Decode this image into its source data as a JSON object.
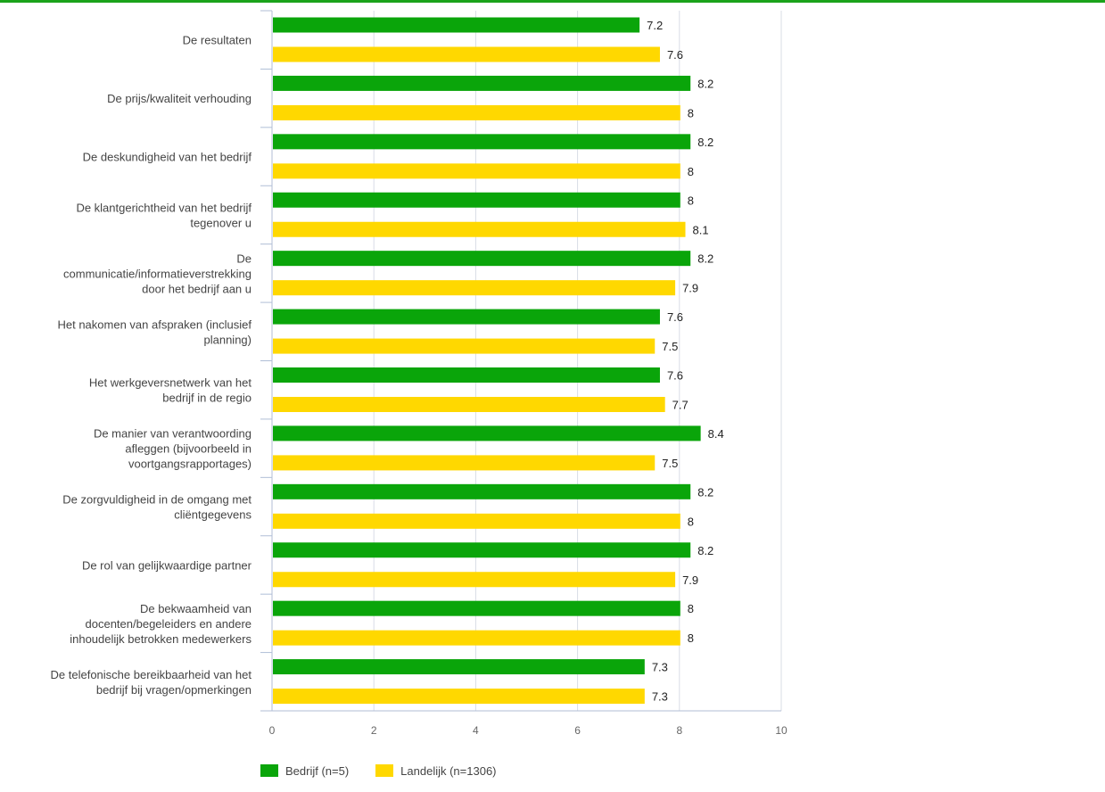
{
  "colors": {
    "top_rule": "#1aa31a",
    "grid": "#d9dde6",
    "axis": "#b0bed6"
  },
  "chart_data": {
    "type": "bar",
    "orientation": "horizontal",
    "categories": [
      [
        "De resultaten"
      ],
      [
        "De prijs/kwaliteit verhouding"
      ],
      [
        "De deskundigheid van het bedrijf"
      ],
      [
        "De klantgerichtheid van het bedrijf",
        "tegenover u"
      ],
      [
        "De",
        "communicatie/informatieverstrekking",
        "door het bedrijf aan u"
      ],
      [
        "Het nakomen van afspraken (inclusief",
        "planning)"
      ],
      [
        "Het werkgeversnetwerk van het",
        "bedrijf in de regio"
      ],
      [
        "De manier van verantwoording",
        "afleggen (bijvoorbeeld in",
        "voortgangsrapportages)"
      ],
      [
        "De zorgvuldigheid in de omgang met",
        "cliëntgegevens"
      ],
      [
        "De rol van gelijkwaardige partner"
      ],
      [
        "De bekwaamheid van",
        "docenten/begeleiders en andere",
        "inhoudelijk betrokken medewerkers"
      ],
      [
        "De telefonische bereikbaarheid van het",
        "bedrijf bij vragen/opmerkingen"
      ]
    ],
    "series": [
      {
        "name": "Bedrijf (n=5)",
        "color": "#0aa50a",
        "values": [
          7.2,
          8.2,
          8.2,
          8,
          8.2,
          7.6,
          7.6,
          8.4,
          8.2,
          8.2,
          8,
          7.3
        ],
        "labels": [
          "7.2",
          "8.2",
          "8.2",
          "8",
          "8.2",
          "7.6",
          "7.6",
          "8.4",
          "8.2",
          "8.2",
          "8",
          "7.3"
        ]
      },
      {
        "name": "Landelijk (n=1306)",
        "color": "#ffd800",
        "values": [
          7.6,
          8,
          8,
          8.1,
          7.9,
          7.5,
          7.7,
          7.5,
          8,
          7.9,
          8,
          7.3
        ],
        "labels": [
          "7.6",
          "8",
          "8",
          "8.1",
          "7.9",
          "7.5",
          "7.7",
          "7.5",
          "8",
          "7.9",
          "8",
          "7.3"
        ]
      }
    ],
    "xlim": [
      0,
      10
    ],
    "xticks": [
      "0",
      "2",
      "4",
      "6",
      "8",
      "10"
    ],
    "grid": true,
    "legend_position": "bottom-left"
  }
}
